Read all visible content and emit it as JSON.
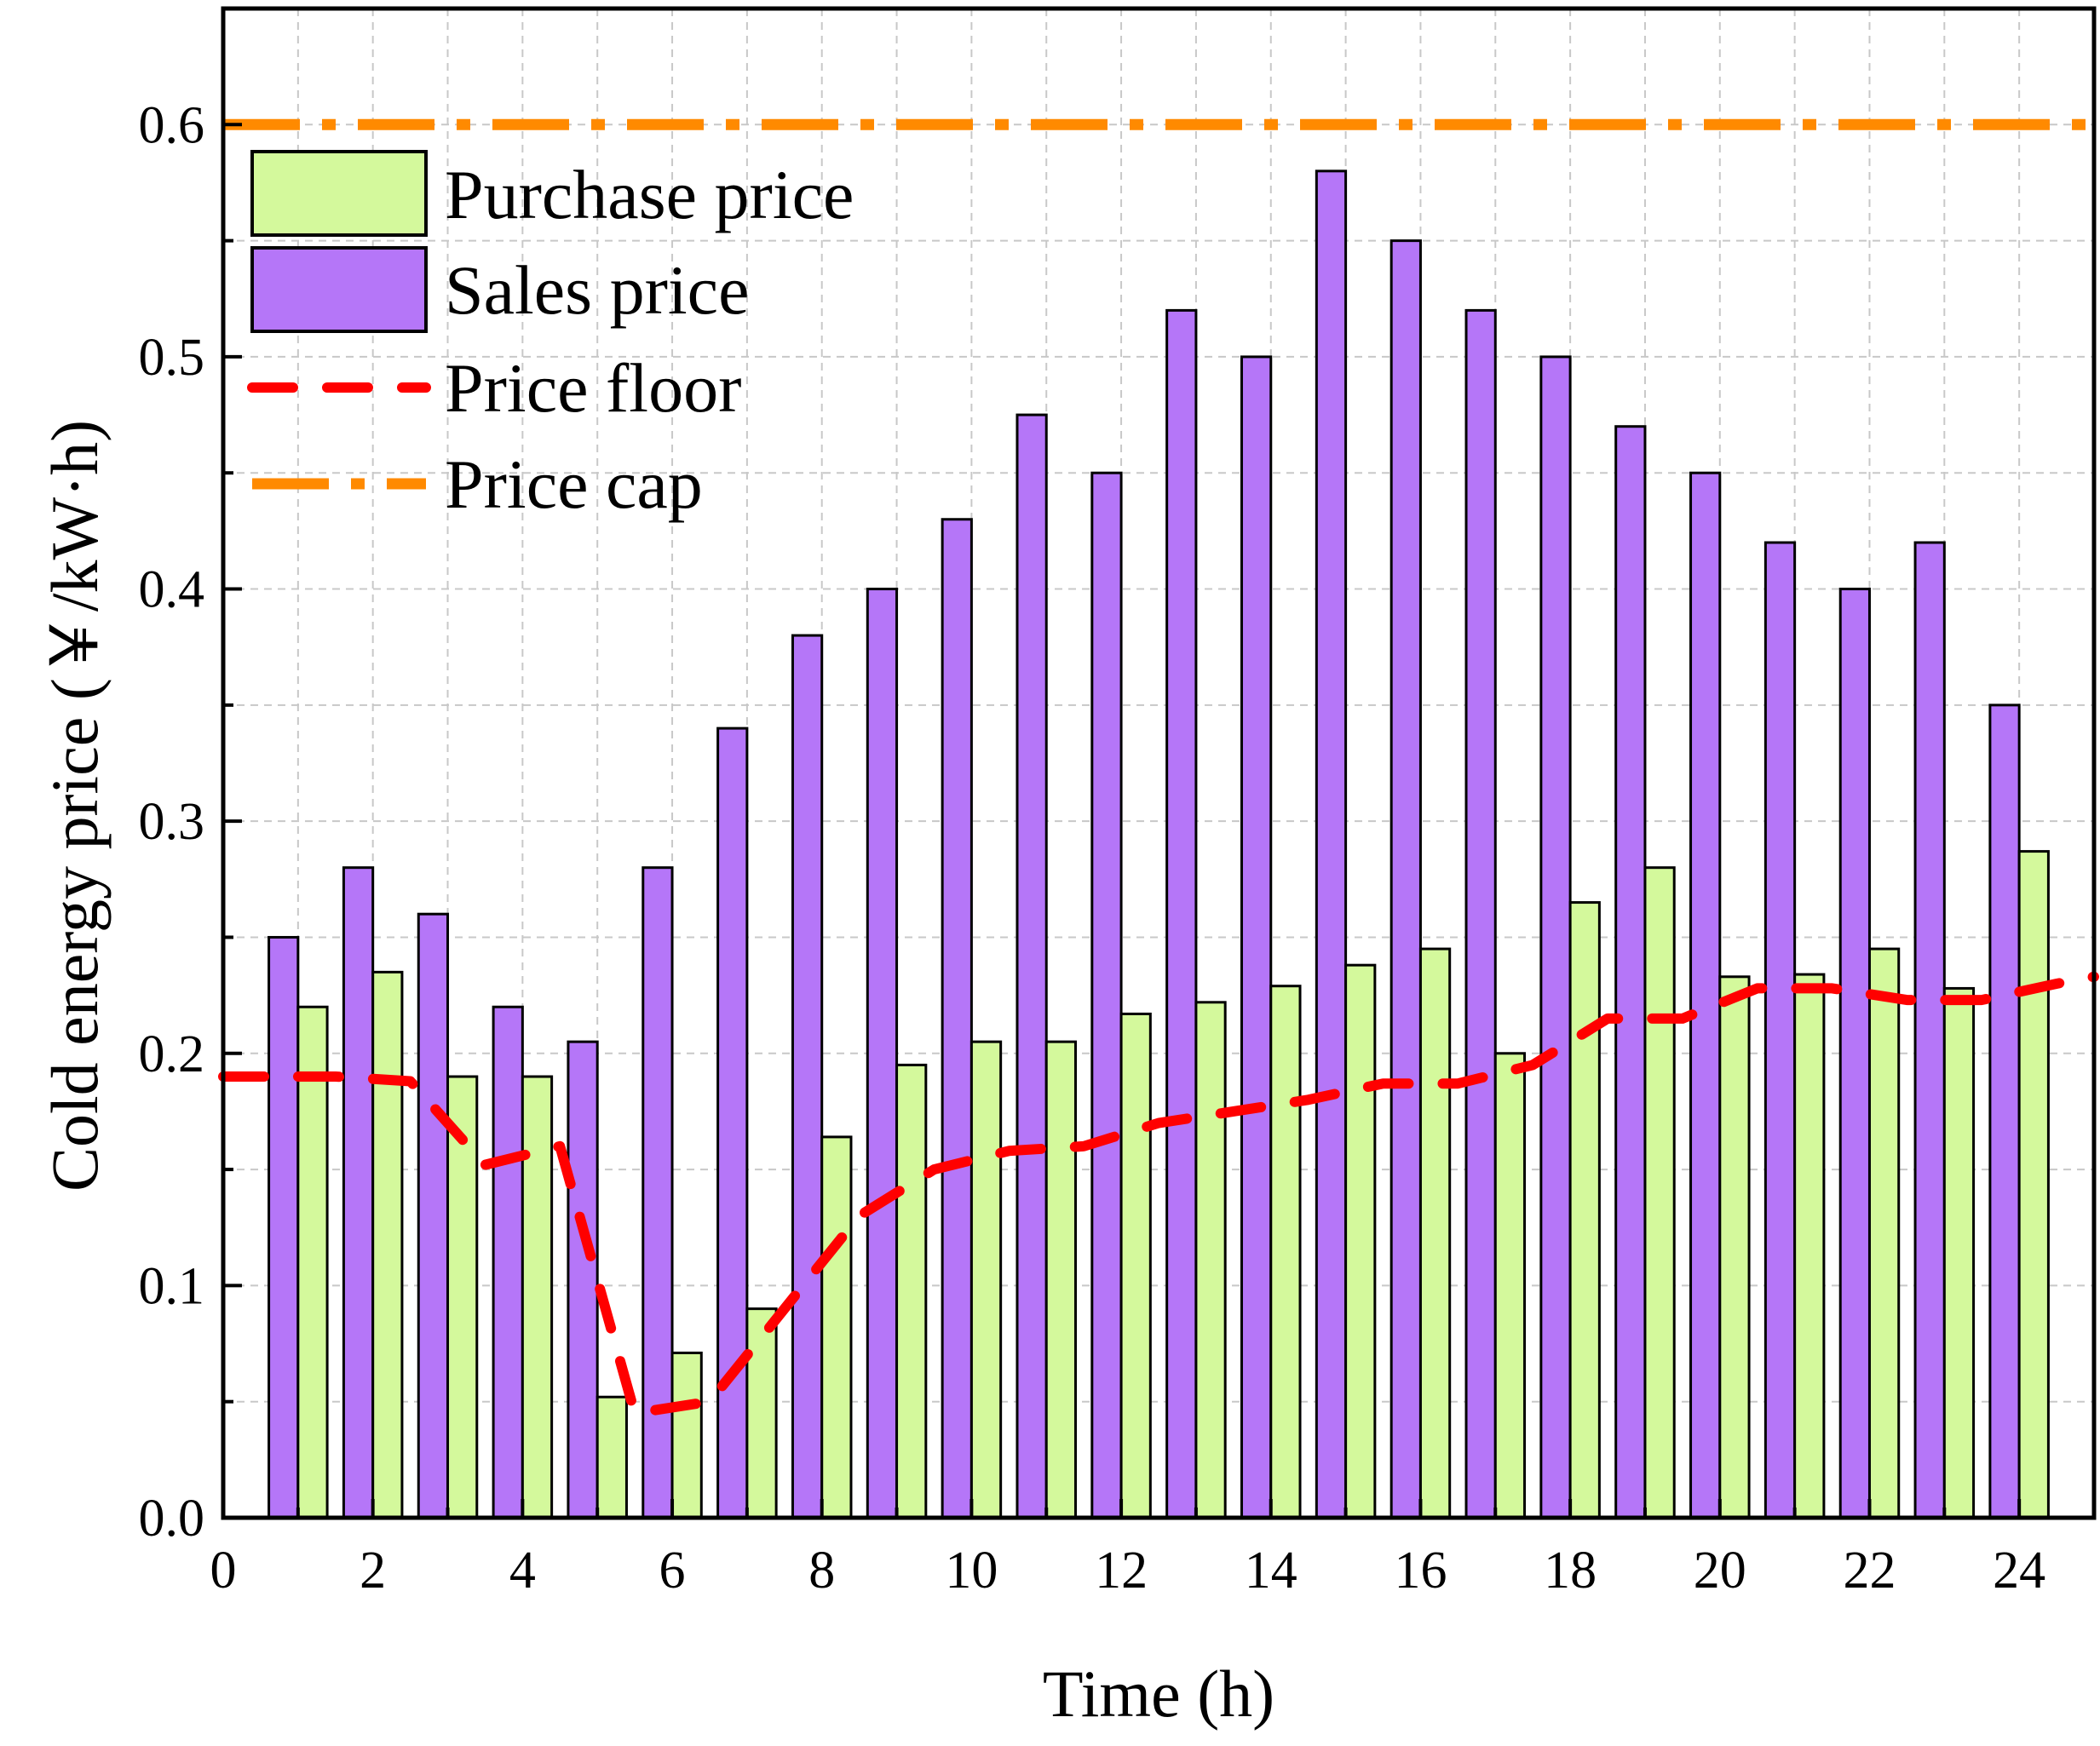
{
  "chart_data": {
    "type": "bar",
    "xlabel": "Time (h)",
    "ylabel": "Cold energy price (￥/kW·h)",
    "xlim": [
      0,
      25
    ],
    "ylim": [
      0,
      0.65
    ],
    "x_ticks": [
      "0",
      "2",
      "4",
      "6",
      "8",
      "10",
      "12",
      "14",
      "16",
      "18",
      "20",
      "22",
      "24"
    ],
    "y_ticks": [
      "0.0",
      "0.1",
      "0.2",
      "0.3",
      "0.4",
      "0.5",
      "0.6"
    ],
    "grid": true,
    "legend_position": "top-left",
    "hours": [
      1,
      2,
      3,
      4,
      5,
      6,
      7,
      8,
      9,
      10,
      11,
      12,
      13,
      14,
      15,
      16,
      17,
      18,
      19,
      20,
      21,
      22,
      23,
      24
    ],
    "series": [
      {
        "name": "Purchase price",
        "kind": "bar",
        "color": "#d4f99c",
        "values": [
          0.22,
          0.235,
          0.19,
          0.19,
          0.052,
          0.071,
          0.09,
          0.164,
          0.195,
          0.205,
          0.205,
          0.217,
          0.222,
          0.229,
          0.238,
          0.245,
          0.2,
          0.265,
          0.28,
          0.233,
          0.234,
          0.245,
          0.228,
          0.287
        ]
      },
      {
        "name": "Sales price",
        "kind": "bar",
        "color": "#b576f8",
        "values": [
          0.25,
          0.28,
          0.26,
          0.22,
          0.205,
          0.28,
          0.34,
          0.38,
          0.4,
          0.43,
          0.475,
          0.45,
          0.52,
          0.5,
          0.58,
          0.55,
          0.52,
          0.5,
          0.47,
          0.45,
          0.42,
          0.4,
          0.42,
          0.35
        ]
      },
      {
        "name": "Price floor",
        "kind": "dashed-line",
        "color": "#ff0000",
        "x": [
          0,
          0.5,
          1.5,
          2.5,
          3.5,
          4.5,
          5.5,
          6.5,
          7.5,
          8.5,
          9.5,
          10.5,
          11.5,
          12.5,
          13.5,
          14.5,
          15.5,
          16.5,
          17.5,
          18.5,
          19.5,
          20.5,
          21.5,
          22.5,
          23.5,
          24.5,
          25
        ],
        "values": [
          0.19,
          0.19,
          0.19,
          0.188,
          0.152,
          0.16,
          0.045,
          0.05,
          0.09,
          0.13,
          0.15,
          0.158,
          0.16,
          0.17,
          0.175,
          0.18,
          0.187,
          0.187,
          0.195,
          0.215,
          0.215,
          0.228,
          0.228,
          0.223,
          0.223,
          0.23,
          0.233
        ]
      },
      {
        "name": "Price cap",
        "kind": "dashdot-line",
        "color": "#ff8a00",
        "value": 0.6
      }
    ]
  }
}
